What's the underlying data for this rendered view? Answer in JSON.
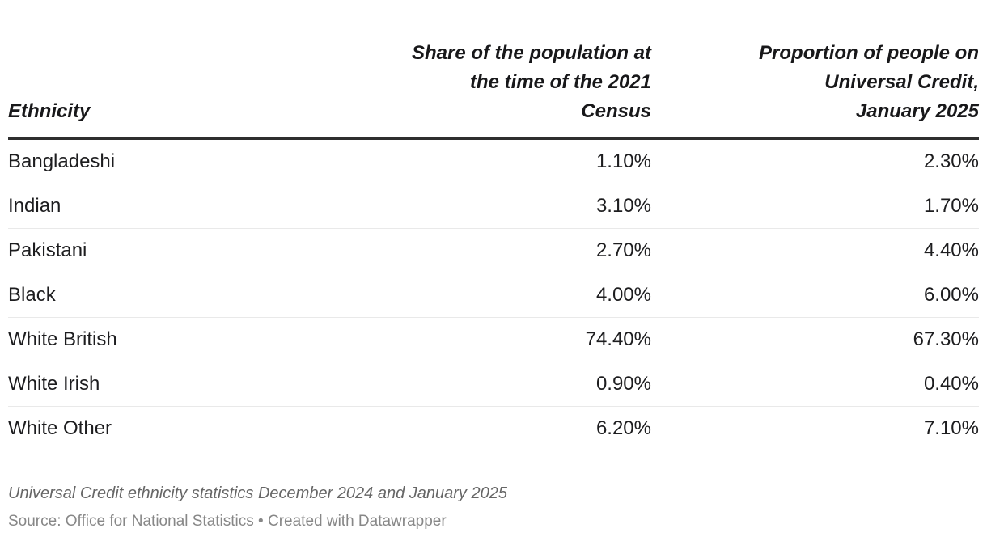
{
  "chart_data": {
    "type": "table",
    "columns": [
      "Ethnicity",
      "Share of the population at the time of the 2021 Census",
      "Proportion of people on Universal Credit, January 2025"
    ],
    "rows": [
      [
        "Bangladeshi",
        "1.10%",
        "2.30%"
      ],
      [
        "Indian",
        "3.10%",
        "1.70%"
      ],
      [
        "Pakistani",
        "2.70%",
        "4.40%"
      ],
      [
        "Black",
        "4.00%",
        "6.00%"
      ],
      [
        "White British",
        "74.40%",
        "67.30%"
      ],
      [
        "White Irish",
        "0.90%",
        "0.40%"
      ],
      [
        "White Other",
        "6.20%",
        "7.10%"
      ]
    ],
    "note": "Universal Credit ethnicity statistics December 2024 and January 2025",
    "source": "Source: Office for National Statistics • Created with Datawrapper",
    "legend_position": "none",
    "grid": "horizontal-row-dividers"
  },
  "header": {
    "col1_display": "Ethnicity",
    "col2_display": "Share of the population at\nthe time of the 2021\nCensus",
    "col3_display": "Proportion of people on\nUniversal Credit,\nJanuary 2025"
  },
  "footer": {
    "note": "Universal Credit ethnicity statistics December 2024 and January 2025",
    "source": "Source: Office for National Statistics • Created with Datawrapper"
  },
  "colors": {
    "body_text": "#1d1d1f",
    "header_text": "#18181a",
    "header_rule": "#2f2f2f",
    "row_divider": "#e9e9e9",
    "note_text": "#666666",
    "source_text": "#878787",
    "background": "#ffffff"
  }
}
